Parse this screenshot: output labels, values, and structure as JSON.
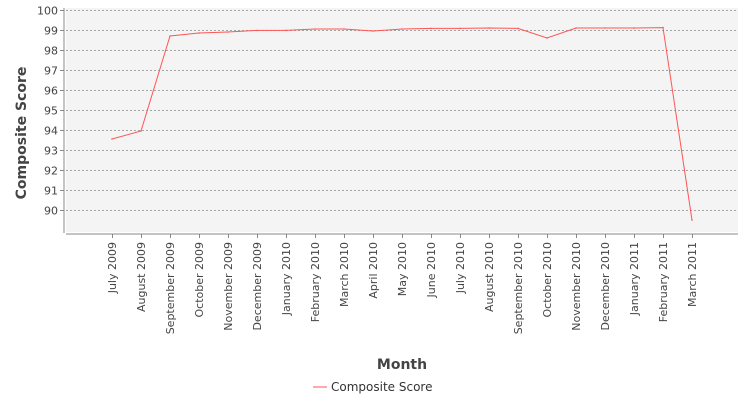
{
  "chart_data": {
    "type": "line",
    "title": "",
    "xlabel": "Month",
    "ylabel": "Composite Score",
    "categories": [
      "July 2009",
      "August 2009",
      "September 2009",
      "October 2009",
      "November 2009",
      "December 2009",
      "January 2010",
      "February 2010",
      "March 2010",
      "April 2010",
      "May 2010",
      "June 2010",
      "July 2010",
      "August 2010",
      "September 2010",
      "October 2010",
      "November 2010",
      "December 2010",
      "January 2011",
      "February 2011",
      "March 2011"
    ],
    "series": [
      {
        "name": "Composite Score",
        "color": "#ff5555",
        "values": [
          93.55,
          93.95,
          98.7,
          98.85,
          98.9,
          98.98,
          98.98,
          99.05,
          99.05,
          98.95,
          99.05,
          99.08,
          99.08,
          99.1,
          99.08,
          98.6,
          99.1,
          99.1,
          99.1,
          99.12,
          89.5
        ]
      }
    ],
    "ylim": [
      88.9,
      100.1
    ],
    "yticks": [
      90,
      91,
      92,
      93,
      94,
      95,
      96,
      97,
      98,
      99,
      100
    ],
    "grid": true,
    "legend_position": "bottom"
  }
}
